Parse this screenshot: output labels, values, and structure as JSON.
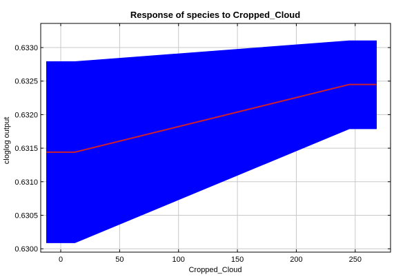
{
  "chart_data": {
    "type": "area",
    "title": "Response of species to Cropped_Cloud",
    "xlabel": "Cropped_Cloud",
    "ylabel": "cloglog output",
    "xlim": [
      -17,
      280
    ],
    "ylim": [
      0.62995,
      0.63336
    ],
    "xticks": [
      0,
      50,
      100,
      150,
      200,
      250
    ],
    "xtick_labels": [
      "0",
      "50",
      "100",
      "150",
      "200",
      "250"
    ],
    "yticks": [
      0.63,
      0.6305,
      0.631,
      0.6315,
      0.632,
      0.6325,
      0.633
    ],
    "ytick_labels": [
      "0.6300",
      "0.6305",
      "0.6310",
      "0.6315",
      "0.6320",
      "0.6325",
      "0.6330"
    ],
    "grid": true,
    "series": [
      {
        "kind": "band",
        "color": "#0000ff",
        "x": [
          -12,
          12,
          245,
          268
        ],
        "upper": [
          0.63279,
          0.63279,
          0.6331,
          0.6331
        ],
        "lower": [
          0.63009,
          0.63009,
          0.63179,
          0.63179
        ]
      },
      {
        "kind": "line",
        "color": "#cc1f2f",
        "x": [
          -12,
          12,
          245,
          268
        ],
        "values": [
          0.63144,
          0.63144,
          0.63245,
          0.63245
        ]
      }
    ]
  }
}
